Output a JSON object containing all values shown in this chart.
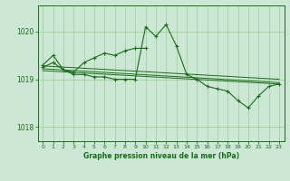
{
  "title": "Graphe pression niveau de la mer (hPa)",
  "bg": "#cce8d4",
  "grid_color": "#99cc99",
  "lc": "#1a6b1a",
  "ylim": [
    1017.7,
    1020.55
  ],
  "yticks": [
    1018,
    1019,
    1020
  ],
  "xlim": [
    -0.5,
    23.5
  ],
  "xticks": [
    0,
    1,
    2,
    3,
    4,
    5,
    6,
    7,
    8,
    9,
    10,
    11,
    12,
    13,
    14,
    15,
    16,
    17,
    18,
    19,
    20,
    21,
    22,
    23
  ],
  "line1_x": [
    0,
    1,
    2,
    3,
    4,
    5,
    6,
    7,
    8,
    9,
    10,
    11,
    12,
    13,
    14,
    15,
    16,
    17,
    18,
    19,
    20,
    21,
    22,
    23
  ],
  "line1_y": [
    1019.3,
    1019.5,
    1019.2,
    1019.1,
    1019.1,
    1019.05,
    1019.05,
    1019.0,
    1019.0,
    1019.0,
    1020.1,
    1019.9,
    1020.15,
    1019.7,
    1019.1,
    1019.0,
    1018.85,
    1018.8,
    1018.75,
    1018.55,
    1018.4,
    1018.65,
    1018.85,
    1018.9
  ],
  "line2_x": [
    0,
    1,
    2,
    3,
    4,
    5,
    6,
    7,
    8,
    9,
    10
  ],
  "line2_y": [
    1019.25,
    1019.35,
    1019.2,
    1019.15,
    1019.35,
    1019.45,
    1019.55,
    1019.5,
    1019.6,
    1019.65,
    1019.65
  ],
  "trend1_x": [
    0,
    23
  ],
  "trend1_y": [
    1019.28,
    1019.0
  ],
  "trend2_x": [
    0,
    23
  ],
  "trend2_y": [
    1019.22,
    1018.93
  ],
  "trend3_x": [
    0,
    23
  ],
  "trend3_y": [
    1019.18,
    1018.9
  ]
}
